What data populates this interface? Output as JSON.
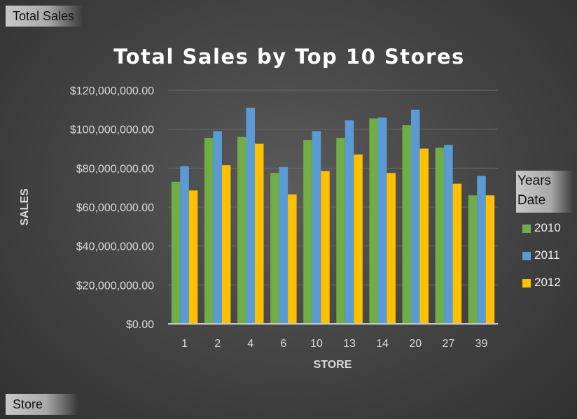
{
  "field_buttons": {
    "values_field": "Total Sales",
    "axis_field": "Store",
    "legend_field_line1": "Years",
    "legend_field_line2": "Date"
  },
  "colors": {
    "2010": "#70ad47",
    "2011": "#5b9bd5",
    "2012": "#ffc000",
    "gridline": "#6a6a6a",
    "axis_text": "#d9d9d9"
  },
  "chart_data": {
    "type": "bar",
    "title": "Total Sales by Top 10 Stores",
    "xlabel": "STORE",
    "ylabel": "SALES",
    "categories": [
      "1",
      "2",
      "4",
      "6",
      "10",
      "13",
      "14",
      "20",
      "27",
      "39"
    ],
    "series": [
      {
        "name": "2010",
        "values": [
          73000000,
          95500000,
          96000000,
          77500000,
          94500000,
          95500000,
          105500000,
          102000000,
          90500000,
          66000000
        ]
      },
      {
        "name": "2011",
        "values": [
          81000000,
          99000000,
          111000000,
          80500000,
          99000000,
          104500000,
          106000000,
          110000000,
          92000000,
          76000000
        ]
      },
      {
        "name": "2012",
        "values": [
          68500000,
          81500000,
          92500000,
          66500000,
          78500000,
          87000000,
          77500000,
          90000000,
          72000000,
          66000000
        ]
      }
    ],
    "y_ticks": [
      "$0.00",
      "$20,000,000.00",
      "$40,000,000.00",
      "$60,000,000.00",
      "$80,000,000.00",
      "$100,000,000.00",
      "$120,000,000.00"
    ],
    "ylim": [
      0,
      120000000
    ],
    "grid": true,
    "legend_position": "right"
  }
}
